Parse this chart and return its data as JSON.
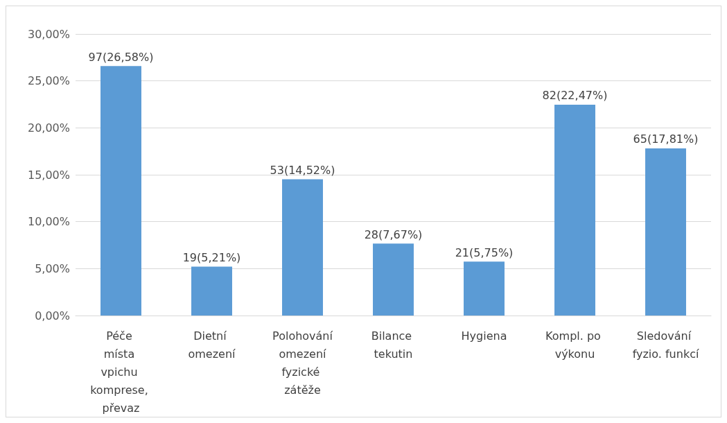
{
  "chart_data": {
    "type": "bar",
    "categories": [
      "Péče místa vpichu komprese, převaz",
      "Dietní omezení",
      "Polohování omezení fyzické zátěže",
      "Bilance tekutin",
      "Hygiena",
      "Kompl. po výkonu",
      "Sledování fyzio. funkcí"
    ],
    "values": [
      26.58,
      5.21,
      14.52,
      7.67,
      5.75,
      22.47,
      17.81
    ],
    "value_labels": [
      "97(26,58%)",
      "19(5,21%)",
      "53(14,52%)",
      "28(7,67%)",
      "21(5,75%)",
      "82(22,47%)",
      "65(17,81%)"
    ],
    "color": "#5b9bd5",
    "ylim": [
      0,
      30
    ],
    "yticks": [
      {
        "value": 0,
        "label": "0,00%"
      },
      {
        "value": 5,
        "label": "5,00%"
      },
      {
        "value": 10,
        "label": "10,00%"
      },
      {
        "value": 15,
        "label": "15,00%"
      },
      {
        "value": 20,
        "label": "20,00%"
      },
      {
        "value": 25,
        "label": "25,00%"
      },
      {
        "value": 30,
        "label": "30,00%"
      }
    ],
    "grid": "y"
  }
}
